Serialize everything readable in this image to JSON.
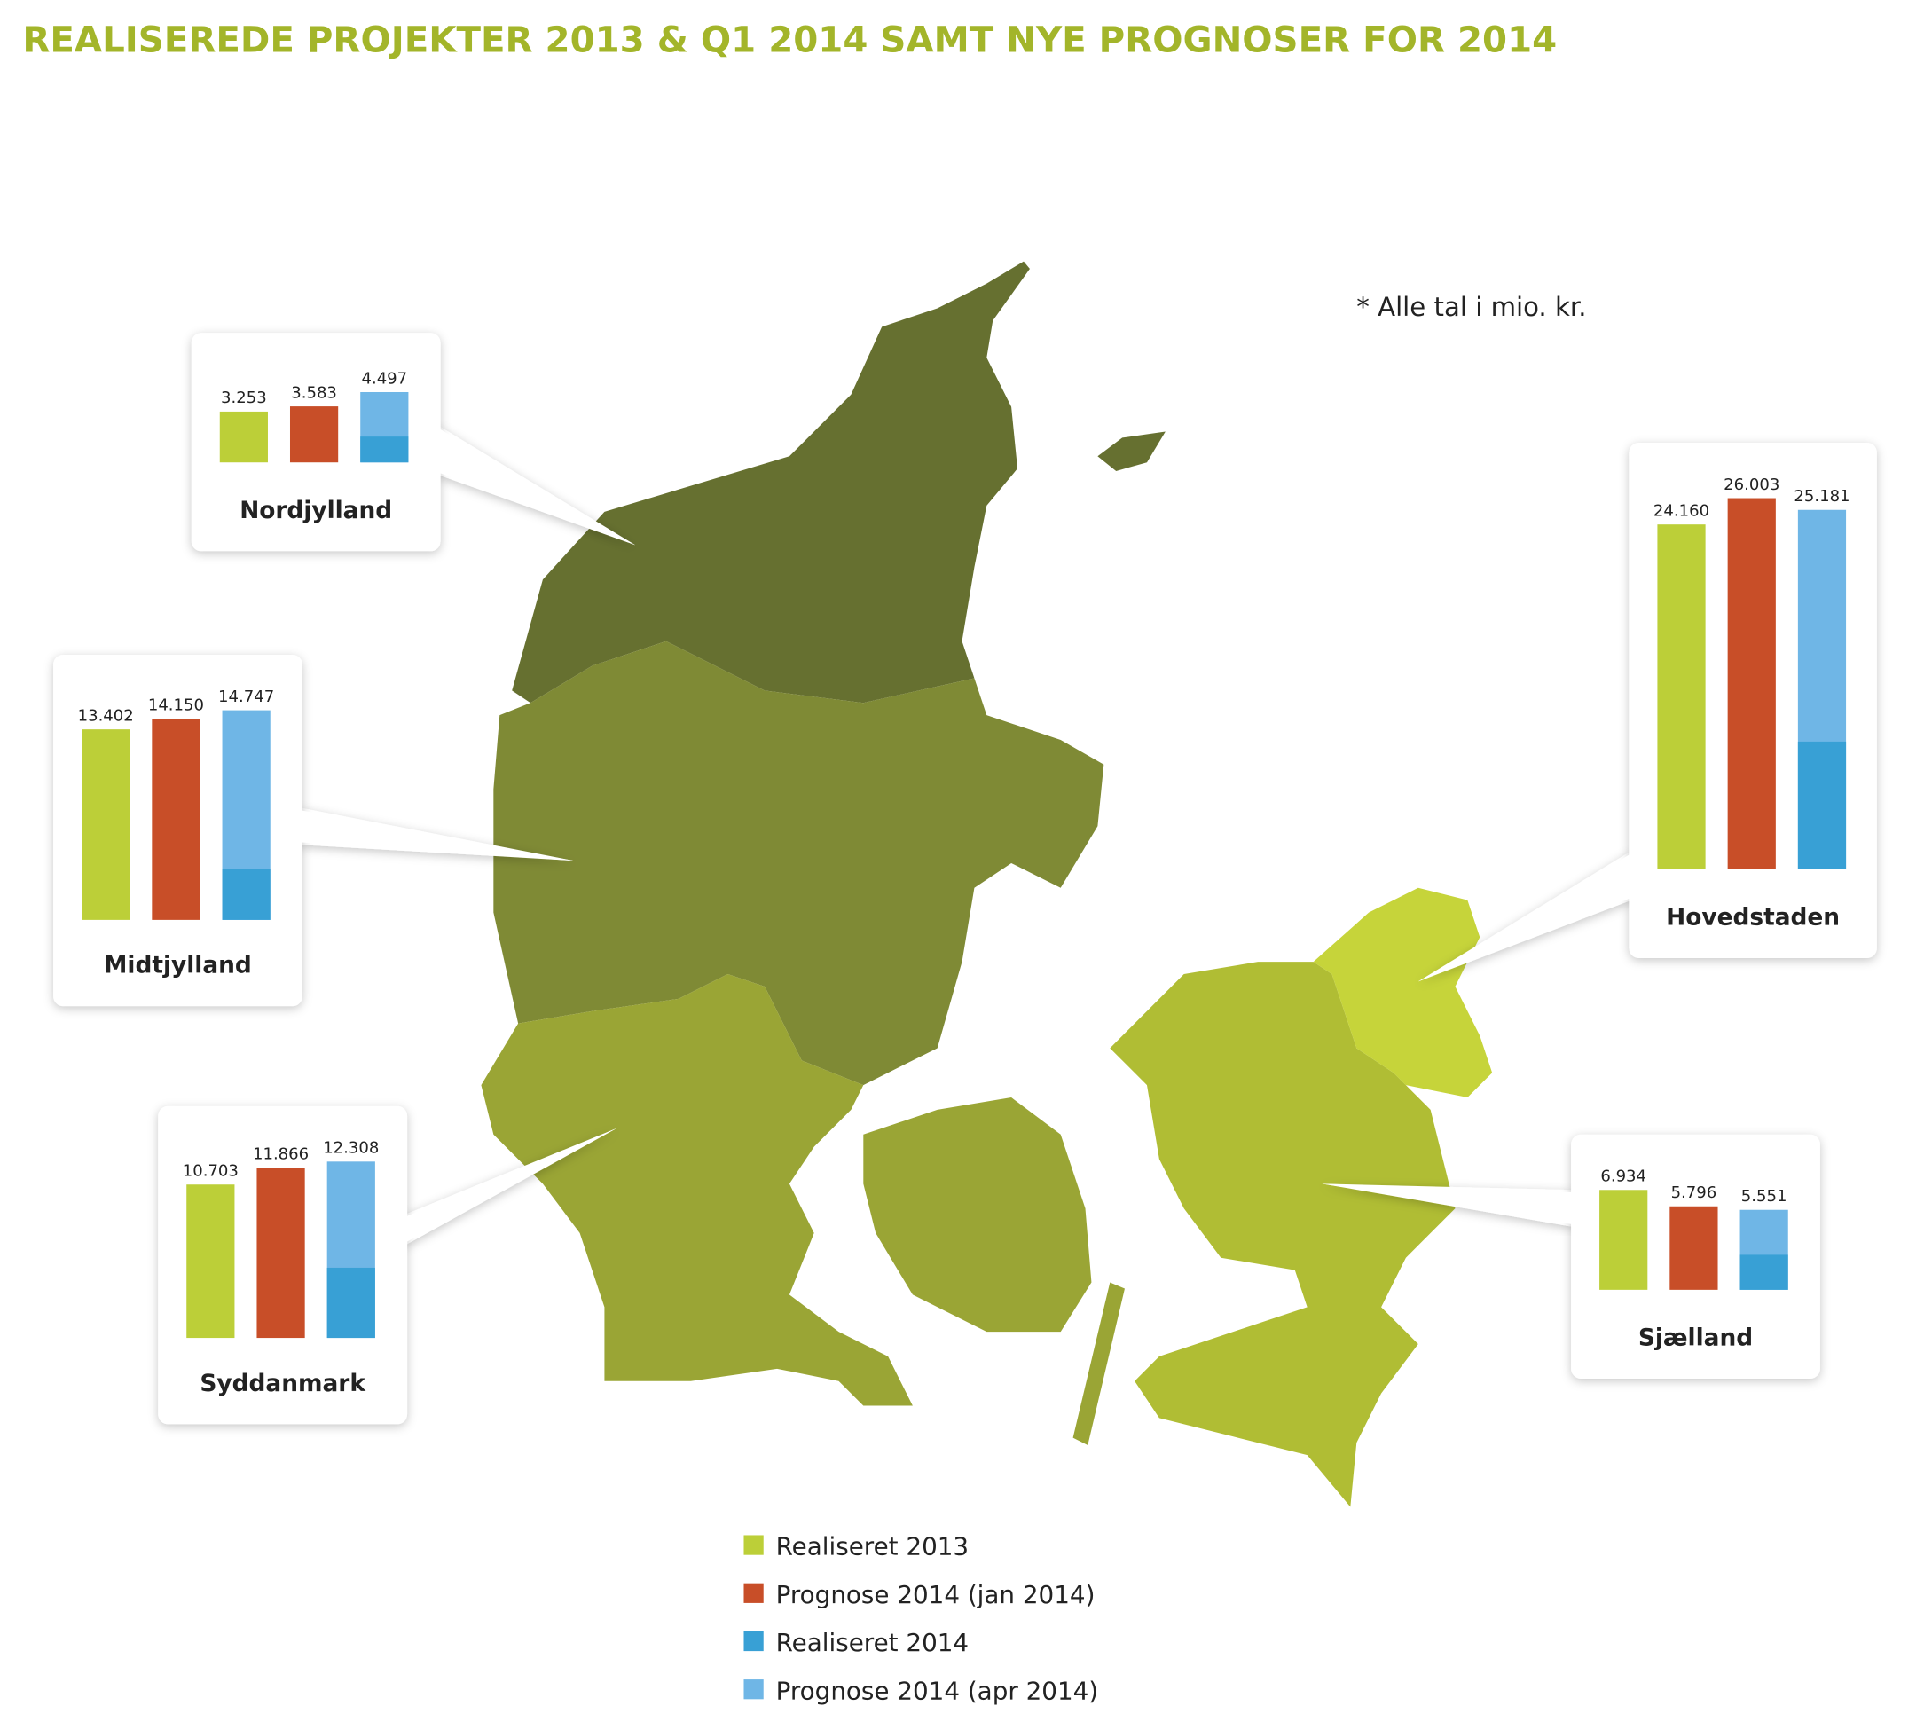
{
  "title": "REALISEREDE PROJEKTER 2013 & Q1 2014 SAMT NYE PROGNOSER FOR 2014",
  "note": "* Alle tal i mio. kr.",
  "colors": {
    "realiseret_2013": "#bccf38",
    "prognose_jan_2014": "#c84e28",
    "realiseret_2014": "#38a0d5",
    "prognose_apr_2014": "#6fb6e6",
    "title": "#a3b52a",
    "map_nordjylland": "#667030",
    "map_midtjylland": "#7f8a35",
    "map_syddanmark": "#9aa535",
    "map_sjaelland": "#b0bd34",
    "map_hovedstaden": "#c6d43a"
  },
  "legend": [
    {
      "label": "Realiseret 2013",
      "color": "#bccf38"
    },
    {
      "label": "Prognose 2014 (jan 2014)",
      "color": "#c84e28"
    },
    {
      "label": "Realiseret 2014",
      "color": "#38a0d5"
    },
    {
      "label": "Prognose 2014 (apr 2014)",
      "color": "#6fb6e6"
    }
  ],
  "chart_data": {
    "type": "bar",
    "unit": "mio. kr.",
    "categories": [
      "Nordjylland",
      "Midtjylland",
      "Syddanmark",
      "Hovedstaden",
      "Sjælland"
    ],
    "series": [
      {
        "name": "Realiseret 2013",
        "values": [
          3253,
          13402,
          10703,
          24160,
          6934
        ],
        "labels": [
          "3.253",
          "13.402",
          "10.703",
          "24.160",
          "6.934"
        ]
      },
      {
        "name": "Prognose 2014 (jan 2014)",
        "values": [
          3583,
          14150,
          11866,
          26003,
          5796
        ],
        "labels": [
          "3.583",
          "14.150",
          "11.866",
          "26.003",
          "5.796"
        ]
      },
      {
        "name": "Realiseret 2014",
        "values": [
          1650,
          3560,
          4900,
          8950,
          2430
        ]
      },
      {
        "name": "Prognose 2014 (apr 2014)",
        "values": [
          4497,
          14747,
          12308,
          25181,
          5551
        ],
        "labels": [
          "4.497",
          "14.747",
          "12.308",
          "25.181",
          "5.551"
        ]
      }
    ],
    "stacking": "Realiseret 2014 drawn inside Prognose 2014 (apr 2014) bar",
    "legend_placement": "bottom-center",
    "grid": false
  }
}
